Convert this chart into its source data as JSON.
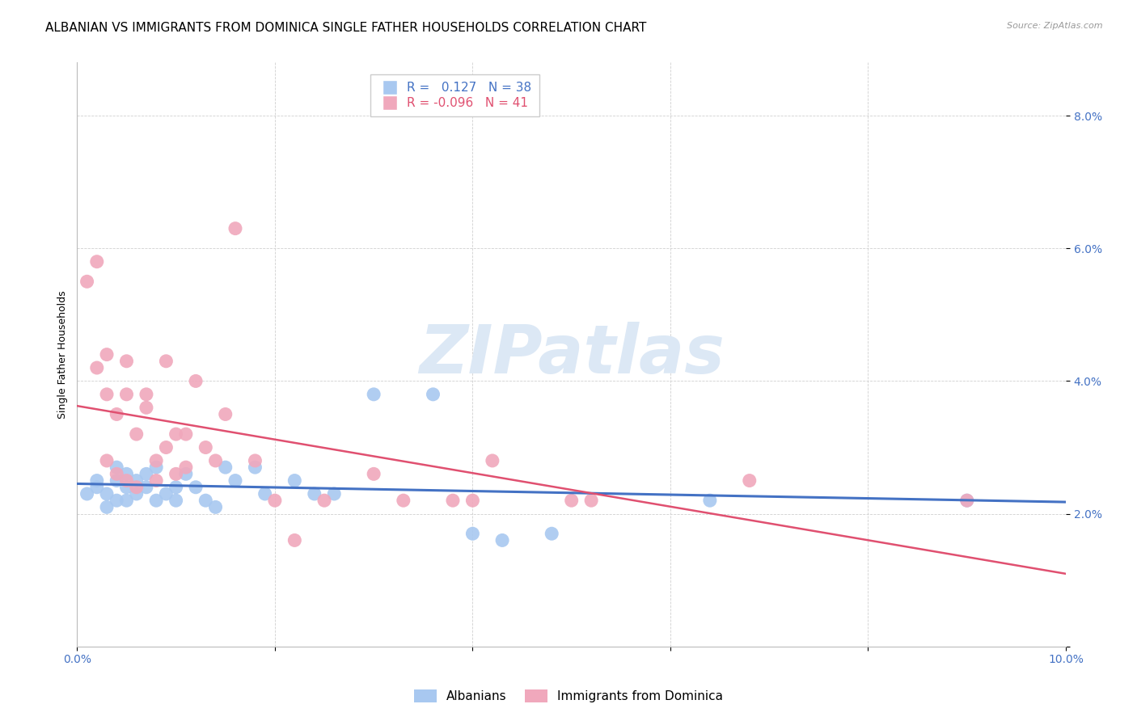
{
  "title": "ALBANIAN VS IMMIGRANTS FROM DOMINICA SINGLE FATHER HOUSEHOLDS CORRELATION CHART",
  "source": "Source: ZipAtlas.com",
  "ylabel": "Single Father Households",
  "xlim": [
    0.0,
    0.1
  ],
  "ylim": [
    0.0,
    0.088
  ],
  "albanians_color": "#a8c8f0",
  "dominica_color": "#f0a8bc",
  "trend_albanian_color": "#4472c4",
  "trend_dominica_color": "#e05070",
  "legend_R_albanian": "0.127",
  "legend_N_albanian": "38",
  "legend_R_dominica": "-0.096",
  "legend_N_dominica": "41",
  "albanians_x": [
    0.001,
    0.002,
    0.002,
    0.003,
    0.003,
    0.004,
    0.004,
    0.004,
    0.005,
    0.005,
    0.005,
    0.006,
    0.006,
    0.007,
    0.007,
    0.008,
    0.008,
    0.009,
    0.01,
    0.01,
    0.011,
    0.012,
    0.013,
    0.014,
    0.015,
    0.016,
    0.018,
    0.019,
    0.022,
    0.024,
    0.026,
    0.03,
    0.036,
    0.04,
    0.043,
    0.048,
    0.064,
    0.09
  ],
  "albanians_y": [
    0.023,
    0.024,
    0.025,
    0.021,
    0.023,
    0.022,
    0.025,
    0.027,
    0.022,
    0.024,
    0.026,
    0.023,
    0.025,
    0.024,
    0.026,
    0.022,
    0.027,
    0.023,
    0.024,
    0.022,
    0.026,
    0.024,
    0.022,
    0.021,
    0.027,
    0.025,
    0.027,
    0.023,
    0.025,
    0.023,
    0.023,
    0.038,
    0.038,
    0.017,
    0.016,
    0.017,
    0.022,
    0.022
  ],
  "dominica_x": [
    0.001,
    0.002,
    0.002,
    0.003,
    0.003,
    0.003,
    0.004,
    0.004,
    0.005,
    0.005,
    0.005,
    0.006,
    0.006,
    0.007,
    0.007,
    0.008,
    0.008,
    0.009,
    0.009,
    0.01,
    0.01,
    0.011,
    0.011,
    0.012,
    0.013,
    0.014,
    0.015,
    0.016,
    0.018,
    0.02,
    0.022,
    0.025,
    0.03,
    0.033,
    0.038,
    0.04,
    0.042,
    0.05,
    0.052,
    0.068,
    0.09
  ],
  "dominica_y": [
    0.055,
    0.058,
    0.042,
    0.028,
    0.044,
    0.038,
    0.026,
    0.035,
    0.025,
    0.043,
    0.038,
    0.024,
    0.032,
    0.036,
    0.038,
    0.025,
    0.028,
    0.043,
    0.03,
    0.026,
    0.032,
    0.027,
    0.032,
    0.04,
    0.03,
    0.028,
    0.035,
    0.063,
    0.028,
    0.022,
    0.016,
    0.022,
    0.026,
    0.022,
    0.022,
    0.022,
    0.028,
    0.022,
    0.022,
    0.025,
    0.022
  ],
  "watermark_text": "ZIPatlas",
  "watermark_color": "#dce8f5",
  "title_fontsize": 11,
  "label_fontsize": 9,
  "tick_fontsize": 10,
  "legend_fontsize": 11
}
